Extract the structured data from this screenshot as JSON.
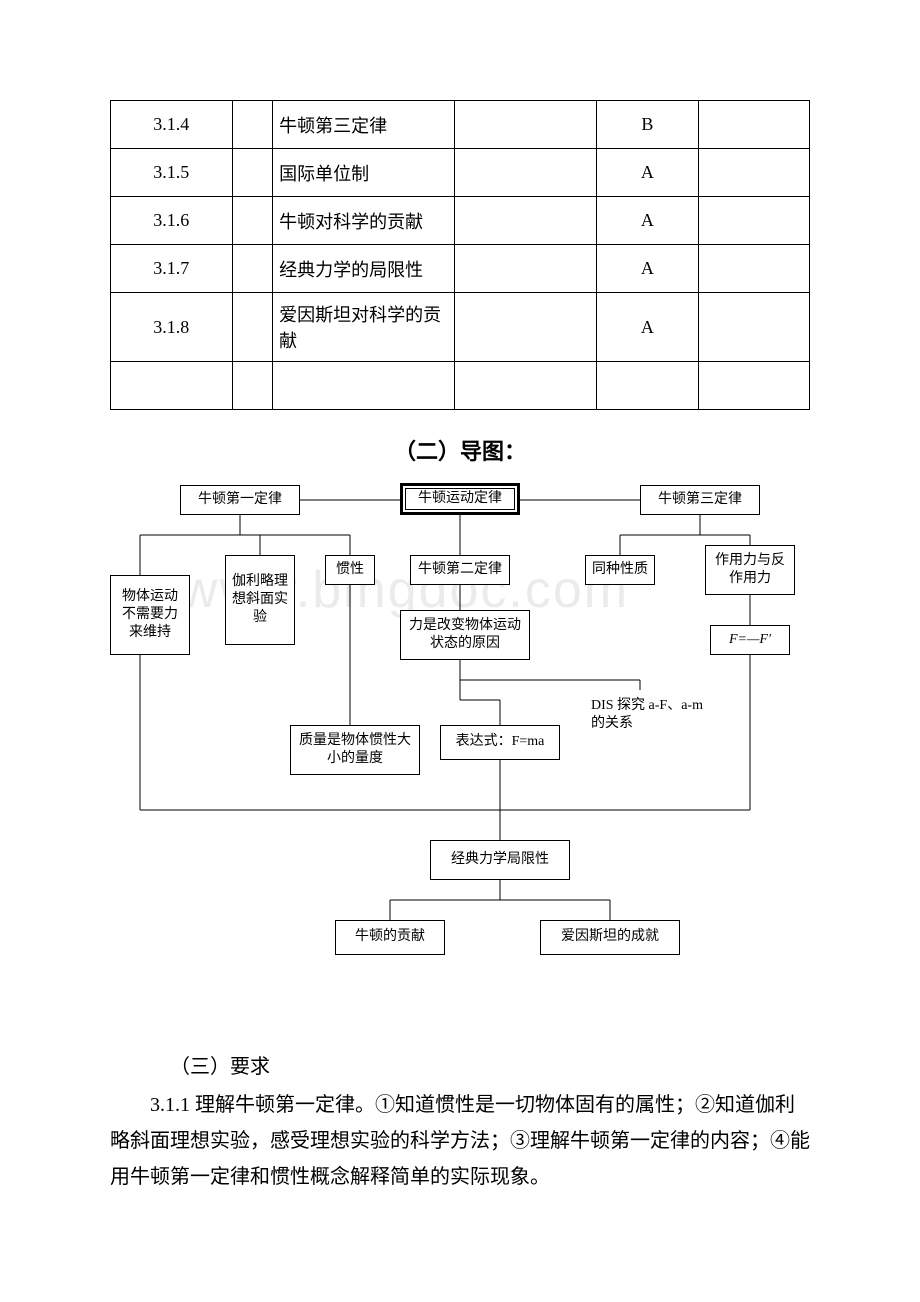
{
  "table": {
    "rows": [
      {
        "id": "3.1.4",
        "topic": "牛顿第三定律",
        "level": "B"
      },
      {
        "id": "3.1.5",
        "topic": "国际单位制",
        "level": "A"
      },
      {
        "id": "3.1.6",
        "topic": "牛顿对科学的贡献",
        "level": "A"
      },
      {
        "id": "3.1.7",
        "topic": "经典力学的局限性",
        "level": "A"
      },
      {
        "id": "3.1.8",
        "topic": "爱因斯坦对科学的贡献",
        "level": "A"
      },
      {
        "id": "",
        "topic": "",
        "level": ""
      }
    ]
  },
  "section2_title": "（二）导图：",
  "diagram": {
    "nodes": {
      "n_first": "牛顿第一定律",
      "n_motion": "牛顿运动定律",
      "n_third": "牛顿第三定律",
      "n_galileo": "伽利略理想斜面实验",
      "n_inertia": "惯性",
      "n_second": "牛顿第二定律",
      "n_same": "同种性质",
      "n_action": "作用力与反作用力",
      "n_noforce": "物体运动不需要力来维持",
      "n_force_change": "力是改变物体运动状态的原因",
      "n_ff": "F=—F′",
      "n_dis": "DIS 探究 a-F、a-m 的关系",
      "n_mass": "质量是物体惯性大小的量度",
      "n_fma": "表达式：F=ma",
      "n_limit": "经典力学局限性",
      "n_newton_contrib": "牛顿的贡献",
      "n_einstein": "爱因斯坦的成就"
    }
  },
  "section3_title": "（三）要求",
  "requirement_text": "3.1.1 理解牛顿第一定律。①知道惯性是一切物体固有的属性；②知道伽利略斜面理想实验，感受理想实验的科学方法；③理解牛顿第一定律的内容；④能用牛顿第一定律和惯性概念解释简单的实际现象。",
  "watermark": "www.bingdoc.com"
}
